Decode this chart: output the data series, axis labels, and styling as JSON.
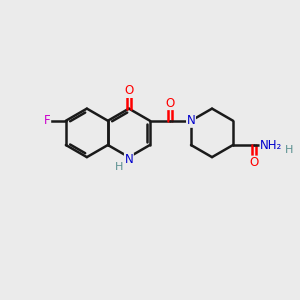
{
  "bg_color": "#ebebeb",
  "bond_color": "#1a1a1a",
  "atom_colors": {
    "O": "#ff0000",
    "N": "#0000cc",
    "F": "#cc00cc",
    "H": "#5a9090",
    "C": "#1a1a1a"
  },
  "figsize": [
    3.0,
    3.0
  ],
  "dpi": 100
}
